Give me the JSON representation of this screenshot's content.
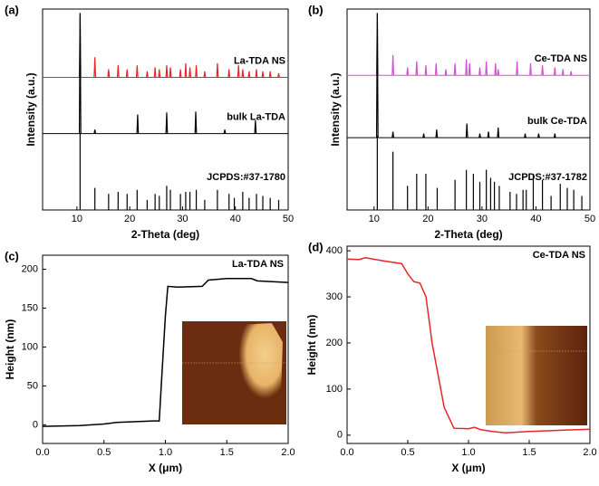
{
  "chart_data": [
    {
      "type": "xrd",
      "panel_label": "(a)",
      "xlabel": "2-Theta (deg)",
      "ylabel": "Intensity (a.u.)",
      "xlim": [
        3.5,
        50
      ],
      "xticks": [
        10,
        20,
        30,
        40,
        50
      ],
      "ylim": [
        0,
        10
      ],
      "series": [
        {
          "name": "La-TDA NS",
          "color": "#e8262a",
          "baseline": 6.6,
          "peaks": [
            10.6,
            13.4,
            16,
            17.8,
            19.5,
            21.4,
            23.3,
            24.8,
            25.6,
            27,
            27.7,
            29.6,
            30.6,
            31.4,
            32.6,
            34.2,
            36.6,
            38.8,
            40.6,
            41.4,
            42.6,
            44,
            45.2,
            46.6,
            48.2
          ],
          "values": [
            9.8,
            7.6,
            7.0,
            7.2,
            7.0,
            7.2,
            6.9,
            7.1,
            7.0,
            7.2,
            7.1,
            7.0,
            7.3,
            7.1,
            7.2,
            6.9,
            7.3,
            7.0,
            7.2,
            7.0,
            6.9,
            7.0,
            6.9,
            6.9,
            6.8
          ]
        },
        {
          "name": "bulk La-TDA",
          "color": "#000000",
          "baseline": 3.8,
          "peaks": [
            10.6,
            13.4,
            21.5,
            27,
            32.5,
            38,
            43.8
          ],
          "values": [
            9.8,
            4.0,
            4.75,
            4.85,
            4.9,
            4.0,
            4.45
          ]
        },
        {
          "name": "JCPDS:#37-1780",
          "color": "#000000",
          "baseline": 0,
          "peaks": [
            10.6,
            13.4,
            16,
            17.8,
            19.5,
            21.4,
            23.3,
            24.8,
            25.6,
            27,
            27.7,
            29.6,
            30.6,
            31.4,
            32.6,
            34.2,
            36.6,
            38.8,
            39.8,
            41.4,
            42.6,
            44,
            45.2,
            46.6,
            48.2
          ],
          "values": [
            3.8,
            1.1,
            0.8,
            0.9,
            0.8,
            1.0,
            0.5,
            0.8,
            0.7,
            1.2,
            1.0,
            0.8,
            0.9,
            0.9,
            1.0,
            0.5,
            1.0,
            0.8,
            0.6,
            0.9,
            0.6,
            0.8,
            0.7,
            0.6,
            0.5
          ]
        }
      ]
    },
    {
      "type": "xrd",
      "panel_label": "(b)",
      "xlabel": "2-Theta (deg)",
      "ylabel": "Intensity (a.u.)",
      "xlim": [
        5,
        50
      ],
      "xticks": [
        10,
        20,
        30,
        40,
        50
      ],
      "ylim": [
        0,
        10
      ],
      "series": [
        {
          "name": "Ce-TDA NS",
          "color": "#d34fd6",
          "baseline": 6.7,
          "peaks": [
            10.6,
            13.5,
            16.2,
            17.9,
            19.6,
            21.5,
            23.3,
            25,
            27.1,
            27.7,
            29.6,
            30.8,
            32.5,
            33,
            36.5,
            39,
            41.2,
            43.5,
            45,
            46.5
          ],
          "values": [
            9.8,
            7.7,
            7.1,
            7.4,
            7.2,
            7.3,
            7.0,
            7.3,
            7.5,
            7.3,
            7.1,
            7.4,
            7.3,
            7.0,
            7.4,
            7.3,
            7.2,
            7.1,
            7.0,
            6.9
          ]
        },
        {
          "name": "bulk Ce-TDA",
          "color": "#000000",
          "baseline": 3.6,
          "peaks": [
            10.6,
            13.5,
            19.2,
            21.6,
            27.2,
            29.6,
            31.2,
            33,
            38,
            40.5,
            43.5
          ],
          "values": [
            9.8,
            3.9,
            3.8,
            4.0,
            4.3,
            3.8,
            3.9,
            4.1,
            3.8,
            3.8,
            3.8
          ]
        },
        {
          "name": "JCPDS:#37-1782",
          "color": "#000000",
          "baseline": 0,
          "peaks": [
            10.6,
            13.5,
            16.2,
            17.9,
            19.6,
            21.7,
            25,
            27.1,
            28.4,
            29.6,
            30.8,
            31.6,
            32.3,
            33.2,
            35.2,
            36.4,
            37.6,
            38.2,
            39.5,
            41.2,
            42.8,
            44.5,
            45.8,
            47,
            48.5
          ],
          "values": [
            3.7,
            2.9,
            1.2,
            1.8,
            1.8,
            1.1,
            1.5,
            2.0,
            1.8,
            1.4,
            2.0,
            1.6,
            1.4,
            1.2,
            0.9,
            0.8,
            1.0,
            1.0,
            1.8,
            1.5,
            0.7,
            1.3,
            1.1,
            1.0,
            0.7
          ]
        }
      ]
    },
    {
      "type": "line",
      "panel_label": "(c)",
      "title": "La-TDA NS",
      "xlabel": "X (μm)",
      "ylabel": "Height (nm)",
      "color": "#000000",
      "x": [
        0,
        0.3,
        0.5,
        0.6,
        0.9,
        0.95,
        0.97,
        1.0,
        1.02,
        1.1,
        1.3,
        1.35,
        1.5,
        1.7,
        1.75,
        2.0
      ],
      "values": [
        -2,
        -1,
        1,
        3,
        5,
        5,
        60,
        140,
        178,
        177,
        178,
        186,
        188,
        188,
        185,
        183
      ],
      "xlim": [
        0,
        2
      ],
      "xticks": [
        {
          "value": 0,
          "label": "0.0"
        },
        0.5,
        {
          "value": 1,
          "label": "1.0"
        },
        1.5,
        {
          "value": 2,
          "label": "2.0"
        }
      ],
      "ylim": [
        -24,
        218
      ],
      "yticks": [
        0,
        50,
        100,
        150,
        200
      ]
    },
    {
      "type": "line",
      "panel_label": "(d)",
      "title": "Ce-TDA NS",
      "xlabel": "X (μm)",
      "ylabel": "Height (nm)",
      "color": "#e8262a",
      "x": [
        0,
        0.1,
        0.15,
        0.3,
        0.45,
        0.5,
        0.55,
        0.6,
        0.65,
        0.7,
        0.8,
        0.88,
        1.0,
        1.05,
        1.1,
        1.2,
        1.3,
        1.5,
        2.0
      ],
      "values": [
        382,
        381,
        385,
        378,
        372,
        350,
        333,
        330,
        300,
        200,
        60,
        15,
        14,
        17,
        12,
        8,
        5,
        8,
        13
      ],
      "xlim": [
        0,
        2
      ],
      "xticks": [
        {
          "value": 0,
          "label": "0.0"
        },
        0.5,
        {
          "value": 1,
          "label": "1.0"
        },
        1.5,
        {
          "value": 2,
          "label": "2.0"
        }
      ],
      "ylim": [
        -18,
        410
      ],
      "yticks": [
        0,
        100,
        200,
        300,
        400
      ]
    }
  ]
}
